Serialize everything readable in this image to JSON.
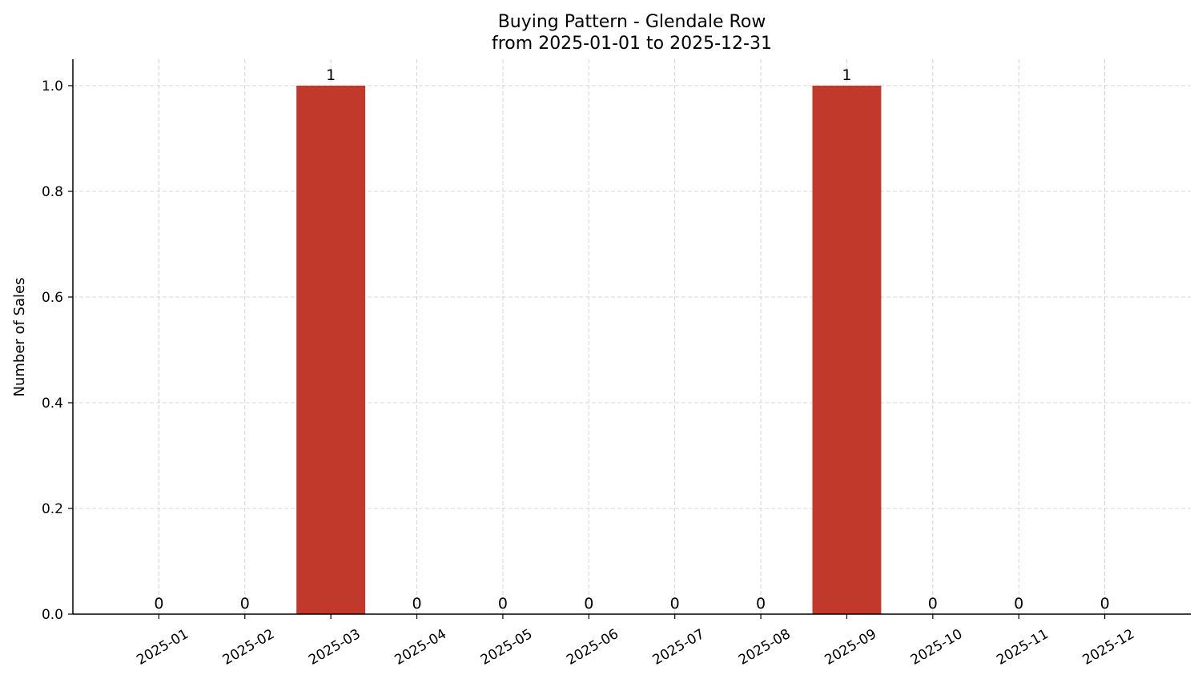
{
  "chart_data": {
    "type": "bar",
    "title": "Buying Pattern - Glendale Row",
    "subtitle": "from 2025-01-01 to 2025-12-31",
    "xlabel": "",
    "ylabel": "Number of Sales",
    "categories": [
      "2025-01",
      "2025-02",
      "2025-03",
      "2025-04",
      "2025-05",
      "2025-06",
      "2025-07",
      "2025-08",
      "2025-09",
      "2025-10",
      "2025-11",
      "2025-12"
    ],
    "values": [
      0,
      0,
      1,
      0,
      0,
      0,
      0,
      0,
      1,
      0,
      0,
      0
    ],
    "data_labels": [
      "0",
      "0",
      "1",
      "0",
      "0",
      "0",
      "0",
      "0",
      "1",
      "0",
      "0",
      "0"
    ],
    "ylim": [
      0,
      1.05
    ],
    "yticks": [
      "0.0",
      "0.2",
      "0.4",
      "0.6",
      "0.8",
      "1.0"
    ],
    "grid": true,
    "bar_color": "#c0392b",
    "legend": "none"
  }
}
